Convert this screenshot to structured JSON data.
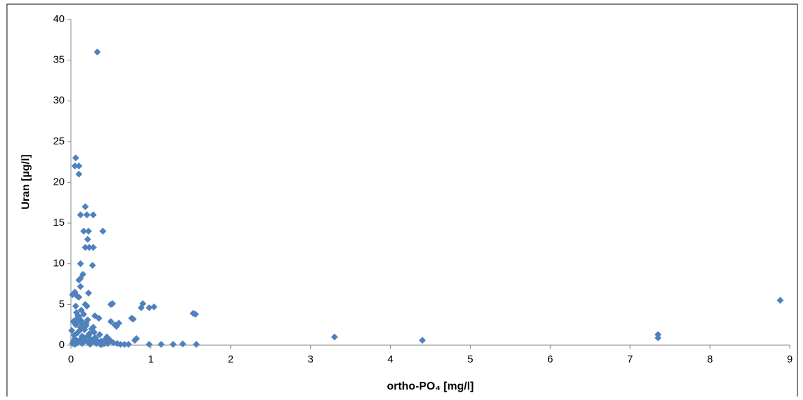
{
  "chart_data": {
    "type": "scatter",
    "xlabel": "ortho-PO₄ [mg/l]",
    "ylabel": "Uran [µg/l]",
    "xlim": [
      0,
      9
    ],
    "xticks": [
      0,
      1,
      2,
      3,
      4,
      5,
      6,
      7,
      8,
      9
    ],
    "ylim": [
      0,
      40
    ],
    "yticks": [
      0,
      5,
      10,
      15,
      20,
      25,
      30,
      35,
      40
    ],
    "grid": false,
    "series": [
      {
        "color": "#4f81bd",
        "x": [
          0.33,
          0.06,
          0.05,
          0.1,
          0.1,
          0.18,
          0.12,
          0.2,
          0.28,
          0.16,
          0.22,
          0.4,
          0.21,
          0.18,
          0.23,
          0.28,
          0.12,
          0.27,
          0.15,
          0.12,
          0.1,
          0.12,
          0.22,
          0.05,
          0.02,
          0.08,
          0.1,
          0.18,
          0.2,
          0.06,
          0.5,
          0.52,
          0.9,
          0.88,
          0.98,
          1.04,
          1.53,
          1.56,
          0.76,
          0.78,
          8.88,
          3.3,
          4.4,
          7.35,
          7.35,
          0.98,
          1.13,
          1.28,
          1.4,
          1.57,
          0.82,
          0.8,
          0.72,
          0.67,
          0.6,
          0.57,
          0.5,
          0.55,
          0.45,
          0.4,
          0.35,
          0.3,
          0.28,
          0.02,
          0.03,
          0.04,
          0.05,
          0.06,
          0.07,
          0.08,
          0.09,
          0.1,
          0.11,
          0.12,
          0.13,
          0.14,
          0.15,
          0.16,
          0.17,
          0.19,
          0.21,
          0.23,
          0.25,
          0.26,
          0.29,
          0.31,
          0.33,
          0.36,
          0.38,
          0.42,
          0.44,
          0.47,
          0.49,
          0.53,
          0.58,
          0.62,
          0.05,
          0.08,
          0.11,
          0.14,
          0.17,
          0.2,
          0.24,
          0.27,
          0.32,
          0.37,
          0.41,
          0.46,
          0.01,
          0.03,
          0.07,
          0.09,
          0.13,
          0.16,
          0.19,
          0.22,
          0.25,
          0.3,
          0.34,
          0.39
        ],
        "values": [
          36,
          23,
          22,
          22,
          21,
          17,
          16,
          16,
          16,
          14,
          14,
          14,
          13,
          12,
          12,
          12,
          10,
          9.8,
          8.7,
          8.2,
          8,
          7.2,
          6.4,
          6.5,
          6.2,
          6,
          5.9,
          5,
          4.8,
          4.8,
          5,
          5.1,
          5.1,
          4.6,
          4.6,
          4.7,
          3.9,
          3.8,
          3.3,
          3.2,
          5.5,
          1,
          0.6,
          1.3,
          0.9,
          0.1,
          0.1,
          0.1,
          0.15,
          0.1,
          0.8,
          0.6,
          0.1,
          0.1,
          2.7,
          2.3,
          2.9,
          2.5,
          1,
          0.3,
          3.3,
          3.6,
          2.2,
          0.2,
          0.5,
          1.2,
          0.8,
          2.5,
          3.2,
          1.5,
          2.8,
          3.5,
          1.8,
          2.2,
          3,
          1.1,
          2.6,
          0.4,
          1.9,
          2.4,
          3.1,
          1.4,
          0.7,
          2,
          1.6,
          0.9,
          0.3,
          1.3,
          0.5,
          0.2,
          0.8,
          0.4,
          0.6,
          0.3,
          0.2,
          0.1,
          0.1,
          0.3,
          0.6,
          0.2,
          0.9,
          0.5,
          0.1,
          0.4,
          0.2,
          0.1,
          0.3,
          0.2,
          1.8,
          2.9,
          4,
          3.6,
          4.3,
          3.8,
          2.7,
          1.2,
          0.6,
          0.9,
          0.4,
          0.1
        ]
      }
    ]
  }
}
